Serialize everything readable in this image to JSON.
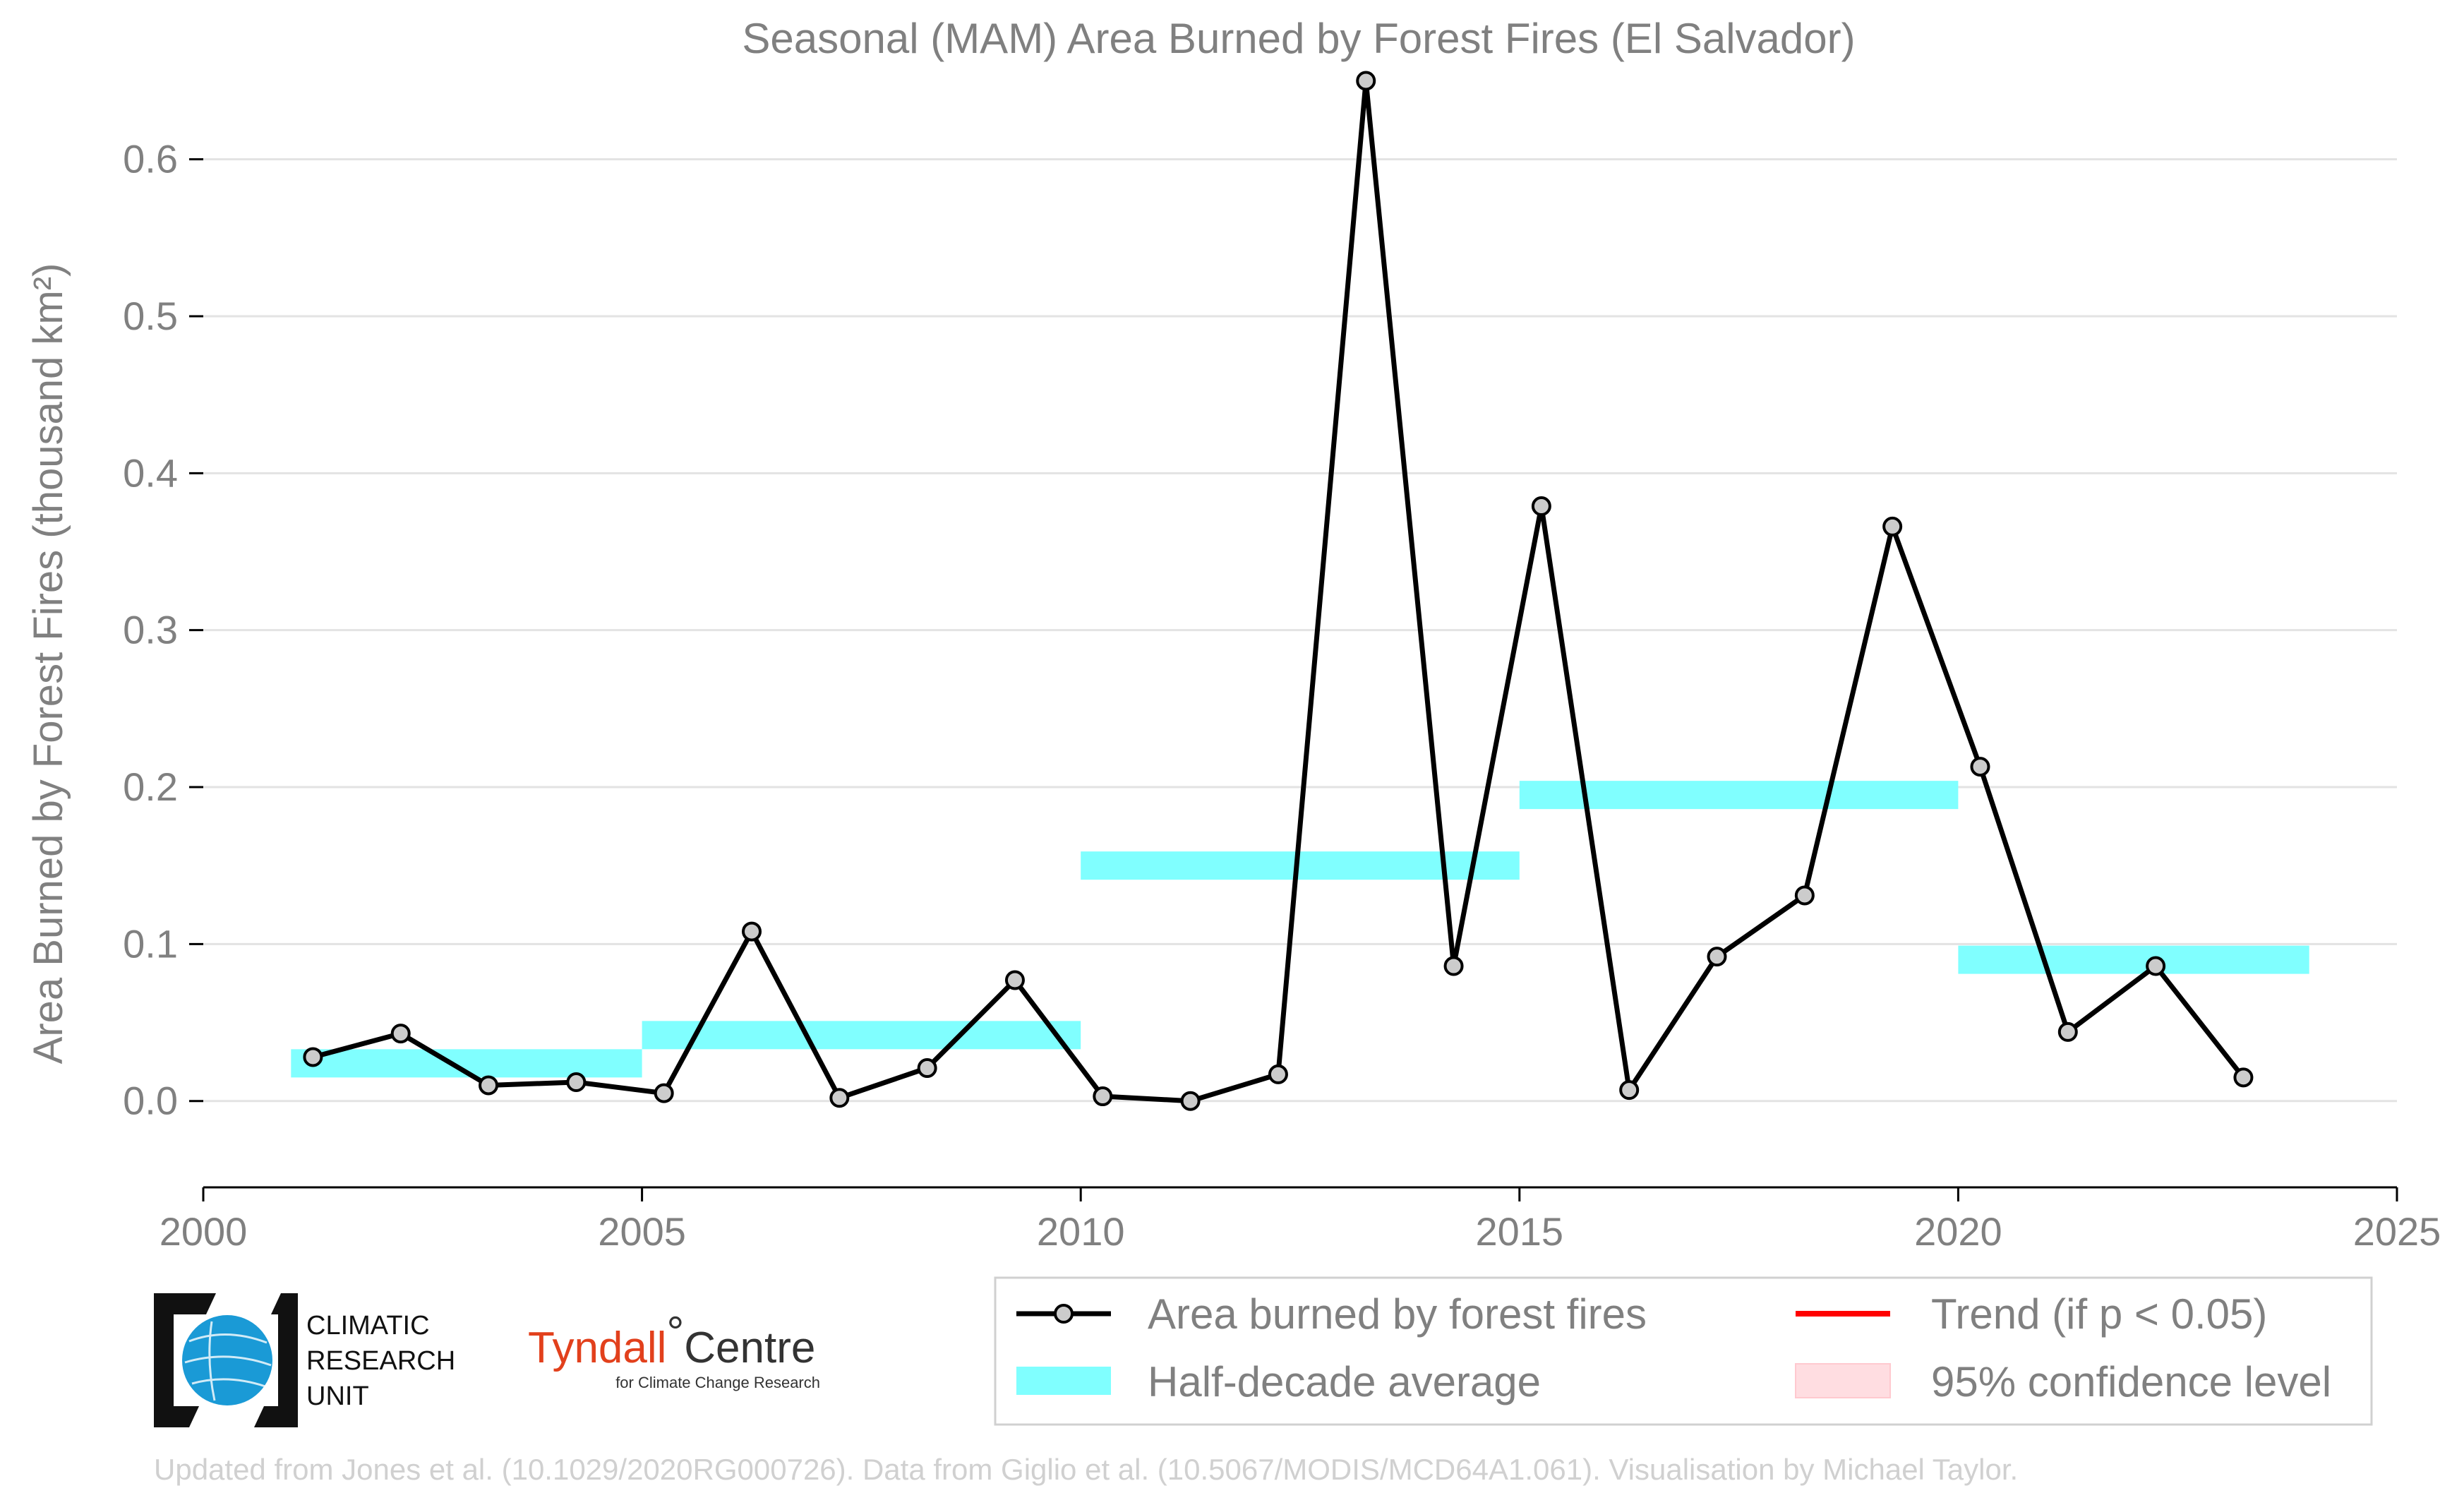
{
  "chart_data": {
    "type": "line",
    "title": "Seasonal (MAM) Area Burned by Forest Fires (El Salvador)",
    "ylabel": "Area Burned by Forest Fires (thousand km²)",
    "xlabel": "",
    "xlim": [
      2000,
      2025
    ],
    "ylim": [
      -0.055,
      0.67
    ],
    "x_ticks": [
      "2000",
      "2005",
      "2010",
      "2015",
      "2020",
      "2025"
    ],
    "y_ticks": [
      "0.0",
      "0.1",
      "0.2",
      "0.3",
      "0.4",
      "0.5",
      "0.6"
    ],
    "grid": "horizontal",
    "series": [
      {
        "name": "Area burned by forest fires",
        "color": "#000000",
        "x": [
          2001.25,
          2002.25,
          2003.25,
          2004.25,
          2005.25,
          2006.25,
          2007.25,
          2008.25,
          2009.25,
          2010.25,
          2011.25,
          2012.25,
          2013.25,
          2014.25,
          2015.25,
          2016.25,
          2017.25,
          2018.25,
          2019.25,
          2020.25,
          2021.25,
          2022.25,
          2023.25
        ],
        "values": [
          0.028,
          0.043,
          0.01,
          0.012,
          0.005,
          0.108,
          0.002,
          0.021,
          0.077,
          0.003,
          0.0,
          0.017,
          0.65,
          0.086,
          0.379,
          0.007,
          0.092,
          0.131,
          0.366,
          0.213,
          0.044,
          0.086,
          0.015
        ]
      }
    ],
    "half_decade_average": {
      "name": "Half-decade average",
      "color": "#80ffff",
      "bars": [
        {
          "x0": 2001,
          "x1": 2005,
          "y": 0.024
        },
        {
          "x0": 2005,
          "x1": 2010,
          "y": 0.042
        },
        {
          "x0": 2010,
          "x1": 2015,
          "y": 0.15
        },
        {
          "x0": 2015,
          "x1": 2020,
          "y": 0.195
        },
        {
          "x0": 2020,
          "x1": 2024,
          "y": 0.09
        }
      ]
    },
    "legend": {
      "placement": "bottom-right",
      "entries": [
        {
          "label": "Area burned by forest fires",
          "kind": "line-marker",
          "color": "#000000"
        },
        {
          "label": "Trend (if p < 0.05)",
          "kind": "line",
          "color": "#ff0000"
        },
        {
          "label": "Half-decade average",
          "kind": "band",
          "color": "#80ffff"
        },
        {
          "label": "95% confidence level",
          "kind": "patch",
          "color": "#ffdde1"
        }
      ]
    }
  },
  "logos": {
    "cru_lines": [
      "CLIMATIC",
      "RESEARCH",
      "UNIT"
    ],
    "tyndall_main": "Tyndall",
    "tyndall_degree": "°",
    "tyndall_centre": "Centre",
    "tyndall_sub": "for Climate Change Research"
  },
  "footer": "Updated from Jones et al. (10.1029/2020RG000726). Data from Giglio et al. (10.5067/MODIS/MCD64A1.061). Visualisation by Michael Taylor."
}
